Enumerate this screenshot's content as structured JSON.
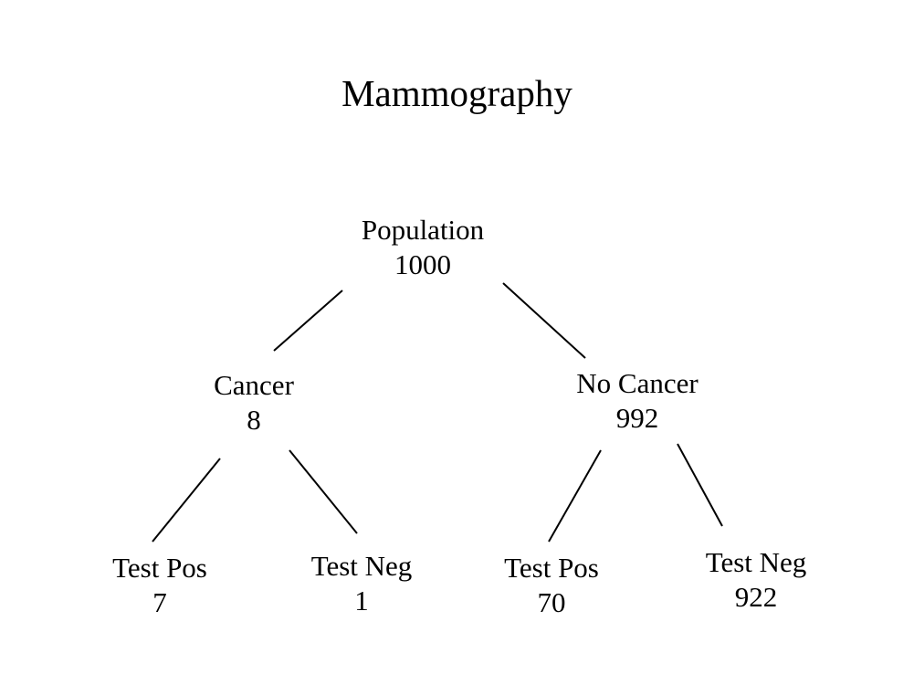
{
  "title": "Mammography",
  "nodes": {
    "population": {
      "label": "Population",
      "count": "1000"
    },
    "cancer": {
      "label": "Cancer",
      "count": "8"
    },
    "no_cancer": {
      "label": "No Cancer",
      "count": "992"
    },
    "cancer_test_pos": {
      "label": "Test Pos",
      "count": "7"
    },
    "cancer_test_neg": {
      "label": "Test Neg",
      "count": "1"
    },
    "no_cancer_test_pos": {
      "label": "Test Pos",
      "count": "70"
    },
    "no_cancer_test_neg": {
      "label": "Test Neg",
      "count": "922"
    }
  },
  "colors": {
    "text": "#000000",
    "lines": "#000000",
    "background": "#ffffff"
  }
}
